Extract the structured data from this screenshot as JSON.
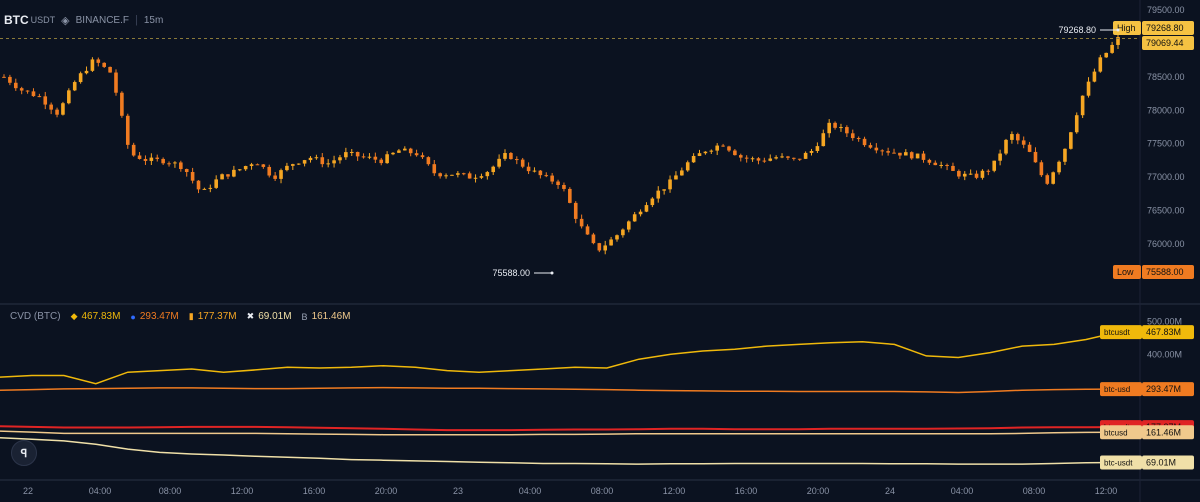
{
  "header": {
    "symbol": "BTC",
    "pair": "USDT",
    "exchange": "BINANCE.F",
    "timeframe": "15m"
  },
  "cvd_header": {
    "label": "CVD (BTC)",
    "items": [
      {
        "icon": "binance-icon",
        "value": "467.83M",
        "color": "#f0b90b"
      },
      {
        "icon": "coinbase-icon",
        "value": "293.47M",
        "color": "#f07b21"
      },
      {
        "icon": "bybit-icon",
        "value": "177.37M",
        "color": "#f5a623"
      },
      {
        "icon": "okx-icon",
        "value": "69.01M",
        "color": "#f0e0a8"
      },
      {
        "icon": "bitfinex-icon",
        "value": "161.46M",
        "color": "#f0c98c"
      }
    ]
  },
  "price_tags": {
    "high_label": "High",
    "high_value": "79268.80",
    "current_value": "79069.44",
    "low_label": "Low",
    "low_value": "75588.00",
    "high_callout": "79268.80",
    "low_callout": "75588.00"
  },
  "colors": {
    "background": "#0b1220",
    "up_candle": "#f5a623",
    "down_candle": "#f07b21",
    "high_tag": "#f5c242",
    "low_tag": "#f07b21",
    "cvd_btcusdt_binance": "#f0b90b",
    "cvd_btc_usd": "#f07b21",
    "cvd_btcusdt_bybit": "#e02424",
    "cvd_btcusd": "#f0c98c",
    "cvd_btc_usdt_okx": "#f0e0a8"
  },
  "chart_data": [
    {
      "type": "candlestick",
      "title": "BTCUSDT 15m",
      "price_ylim": [
        75500,
        79550
      ],
      "y_ticks": [
        79500,
        79000,
        78500,
        78000,
        77500,
        77000,
        76500,
        76000
      ],
      "x_ticks": [
        "22",
        "04:00",
        "08:00",
        "12:00",
        "16:00",
        "20:00",
        "23",
        "04:00",
        "08:00",
        "12:00",
        "16:00",
        "20:00",
        "24",
        "04:00",
        "08:00",
        "12:00"
      ],
      "high": 79268.8,
      "low": 75588.0,
      "last": 79069.44,
      "approx_close_path": [
        78500,
        78300,
        78200,
        77950,
        78450,
        78750,
        78550,
        77350,
        77250,
        77250,
        77150,
        76750,
        77000,
        77100,
        77250,
        77000,
        77200,
        77300,
        77200,
        77350,
        77300,
        77250,
        77400,
        77350,
        77050,
        77050,
        77000,
        77100,
        77350,
        77150,
        77000,
        76900,
        76300,
        75900,
        76100,
        76400,
        76700,
        76900,
        77200,
        77400,
        77500,
        77300,
        77250,
        77300,
        77250,
        77400,
        77800,
        77650,
        77500,
        77400,
        77350,
        77300,
        77200,
        77050,
        77000,
        77150,
        77650,
        77400,
        76900,
        77400,
        78200,
        78750,
        79069.44
      ]
    },
    {
      "type": "line",
      "title": "CVD (BTC)",
      "y_ticks": [
        "500.00M",
        "400.00M"
      ],
      "series": [
        {
          "name": "btcusdt",
          "last": "467.83M",
          "values": [
            330,
            335,
            335,
            310,
            345,
            350,
            355,
            345,
            352,
            360,
            358,
            360,
            365,
            360,
            350,
            345,
            350,
            355,
            360,
            358,
            385,
            400,
            410,
            415,
            425,
            430,
            435,
            438,
            430,
            395,
            390,
            405,
            425,
            430,
            445,
            467.83
          ]
        },
        {
          "name": "btc-usd",
          "last": "293.47M",
          "values": [
            290,
            292,
            294,
            295,
            296,
            297,
            297,
            296,
            295,
            295,
            296,
            297,
            298,
            297,
            296,
            296,
            295,
            294,
            293,
            292,
            290,
            289,
            288,
            287,
            287,
            286,
            286,
            286,
            286,
            285,
            283,
            286,
            290,
            292,
            293,
            293.47
          ]
        },
        {
          "name": "btcusdt",
          "last": "177.37M",
          "values": [
            180,
            178,
            176,
            176,
            176,
            177,
            178,
            178,
            178,
            177,
            175,
            174,
            172,
            170,
            168,
            168,
            168,
            169,
            170,
            170,
            171,
            172,
            172,
            171,
            171,
            171,
            172,
            172,
            172,
            172,
            173,
            174,
            176,
            177,
            177,
            177.37
          ]
        },
        {
          "name": "btcusd",
          "last": "161.46M",
          "values": [
            165,
            162,
            158,
            158,
            158,
            158,
            158,
            158,
            158,
            157,
            156,
            155,
            154,
            154,
            154,
            154,
            154,
            155,
            155,
            156,
            157,
            157,
            157,
            157,
            157,
            157,
            157,
            157,
            157,
            157,
            157,
            157,
            158,
            160,
            161,
            161.46
          ]
        },
        {
          "name": "btc-usdt",
          "last": "69.01M",
          "values": [
            145,
            140,
            135,
            125,
            110,
            100,
            95,
            92,
            88,
            85,
            82,
            78,
            76,
            74,
            72,
            70,
            68,
            66,
            66,
            65,
            64,
            65,
            65,
            66,
            66,
            66,
            66,
            66,
            65,
            65,
            64,
            64,
            64,
            66,
            68,
            69.01
          ]
        }
      ]
    }
  ]
}
